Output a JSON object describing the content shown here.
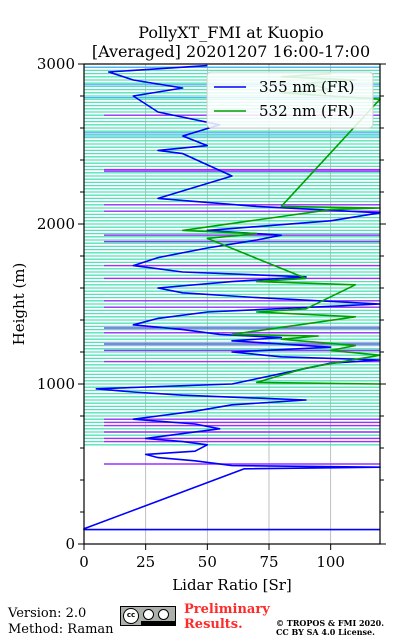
{
  "chart_data": {
    "type": "line",
    "title": [
      "PollyXT_FMI at Kuopio",
      "[Averaged] 20201207 16:00-17:00"
    ],
    "xlabel": "Lidar Ratio [Sr]",
    "ylabel": "Height (m)",
    "xlim": [
      0,
      120
    ],
    "ylim": [
      0,
      3000
    ],
    "xticks": [
      0,
      25,
      50,
      75,
      100
    ],
    "yticks": [
      0,
      1000,
      2000,
      3000
    ],
    "grid": "vertical",
    "legend_position": "top-right",
    "series": [
      {
        "name": "355 nm (FR)",
        "color": "#0000ff",
        "points": [
          [
            120,
            90
          ],
          [
            0,
            90
          ],
          [
            0,
            95
          ],
          [
            65,
            470
          ],
          [
            120,
            480
          ],
          [
            60,
            490
          ],
          [
            45,
            520
          ],
          [
            30,
            540
          ],
          [
            25,
            560
          ],
          [
            45,
            580
          ],
          [
            50,
            620
          ],
          [
            40,
            640
          ],
          [
            25,
            660
          ],
          [
            40,
            690
          ],
          [
            55,
            720
          ],
          [
            45,
            750
          ],
          [
            20,
            780
          ],
          [
            30,
            800
          ],
          [
            45,
            830
          ],
          [
            60,
            870
          ],
          [
            90,
            900
          ],
          [
            40,
            930
          ],
          [
            20,
            950
          ],
          [
            5,
            970
          ],
          [
            60,
            1000
          ],
          [
            100,
            1130
          ],
          [
            120,
            1150
          ],
          [
            80,
            1170
          ],
          [
            60,
            1200
          ],
          [
            100,
            1230
          ],
          [
            60,
            1270
          ],
          [
            80,
            1290
          ],
          [
            55,
            1310
          ],
          [
            40,
            1340
          ],
          [
            20,
            1370
          ],
          [
            30,
            1410
          ],
          [
            50,
            1450
          ],
          [
            120,
            1500
          ],
          [
            70,
            1540
          ],
          [
            40,
            1570
          ],
          [
            30,
            1600
          ],
          [
            60,
            1640
          ],
          [
            90,
            1670
          ],
          [
            40,
            1700
          ],
          [
            20,
            1740
          ],
          [
            30,
            1790
          ],
          [
            50,
            1850
          ],
          [
            70,
            1900
          ],
          [
            80,
            1930
          ],
          [
            50,
            1960
          ],
          [
            100,
            2020
          ],
          [
            120,
            2070
          ],
          [
            70,
            2110
          ],
          [
            30,
            2160
          ],
          [
            60,
            2300
          ],
          [
            40,
            2440
          ],
          [
            30,
            2460
          ],
          [
            50,
            2490
          ],
          [
            40,
            2550
          ],
          [
            55,
            2620
          ],
          [
            30,
            2700
          ],
          [
            20,
            2800
          ],
          [
            40,
            2850
          ],
          [
            20,
            2900
          ],
          [
            10,
            2950
          ],
          [
            50,
            2990
          ]
        ]
      },
      {
        "name": "532 nm (FR)",
        "color": "#00a000",
        "points": [
          [
            120,
            1000
          ],
          [
            70,
            1010
          ],
          [
            90,
            1100
          ],
          [
            120,
            1180
          ],
          [
            100,
            1210
          ],
          [
            110,
            1240
          ],
          [
            80,
            1280
          ],
          [
            95,
            1300
          ],
          [
            60,
            1310
          ],
          [
            110,
            1420
          ],
          [
            70,
            1450
          ],
          [
            90,
            1470
          ],
          [
            110,
            1620
          ],
          [
            70,
            1640
          ],
          [
            90,
            1660
          ],
          [
            50,
            1910
          ],
          [
            70,
            1940
          ],
          [
            40,
            1960
          ],
          [
            100,
            2090
          ],
          [
            120,
            2100
          ],
          [
            80,
            2110
          ],
          [
            120,
            2780
          ],
          [
            80,
            2820
          ],
          [
            100,
            2840
          ],
          [
            90,
            2880
          ],
          [
            110,
            2900
          ],
          [
            80,
            2920
          ],
          [
            100,
            2940
          ]
        ]
      }
    ],
    "extra_series": [
      {
        "color": "#9b30ff",
        "note": "violet profile"
      },
      {
        "color": "#40e0b0",
        "note": "turquoise profile"
      }
    ]
  },
  "footer": {
    "version": "Version: 2.0",
    "method": "Method: Raman",
    "preliminary_line1": "Preliminary",
    "preliminary_line2": "Results.",
    "copyright_line1": "© TROPOS & FMI 2020.",
    "copyright_line2": "CC BY SA 4.0 License."
  },
  "license_badge": {
    "cc": "cc",
    "by_icon": "person-icon",
    "sa_icon": "share-alike-icon"
  }
}
